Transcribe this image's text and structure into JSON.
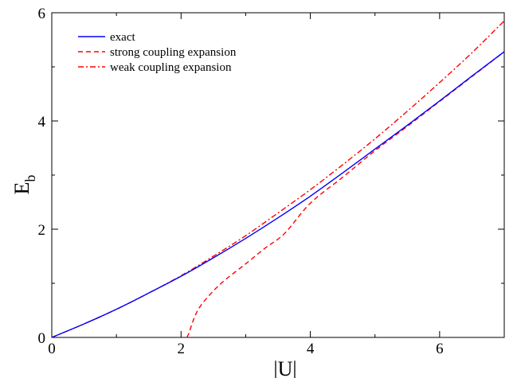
{
  "chart_data": {
    "type": "line",
    "xlabel": "|U|",
    "ylabel": "E",
    "ylabel_subscript": "b",
    "xlim": [
      0,
      7
    ],
    "ylim": [
      0,
      6
    ],
    "xticks": [
      "0",
      "2",
      "4",
      "6"
    ],
    "yticks": [
      "0",
      "2",
      "4",
      "6"
    ],
    "grid": false,
    "legend_position": "top-left",
    "series": [
      {
        "name": "exact",
        "color": "#0000ff",
        "dash": "solid",
        "x": [
          0,
          0.5,
          1,
          1.5,
          2,
          2.5,
          3,
          3.5,
          4,
          4.5,
          5,
          5.5,
          6,
          6.5,
          7
        ],
        "y": [
          0,
          0.25,
          0.52,
          0.82,
          1.13,
          1.47,
          1.83,
          2.21,
          2.61,
          3.04,
          3.48,
          3.92,
          4.37,
          4.83,
          5.28
        ]
      },
      {
        "name": "strong coupling expansion",
        "color": "#ff0000",
        "dash": "dashed",
        "x": [
          2.0,
          2.1,
          2.2,
          2.3,
          2.5,
          2.7,
          3.0,
          3.3,
          3.6,
          4.0,
          4.5,
          5.0,
          5.5,
          6.0,
          6.5,
          7.0
        ],
        "y": [
          -0.1,
          0.02,
          0.35,
          0.58,
          0.86,
          1.08,
          1.36,
          1.65,
          1.92,
          2.48,
          2.96,
          3.45,
          3.9,
          4.36,
          4.82,
          5.28
        ]
      },
      {
        "name": "weak coupling expansion",
        "color": "#ff0000",
        "dash": "dashdot",
        "x": [
          0,
          0.5,
          1,
          1.5,
          2,
          2.5,
          3,
          3.5,
          4,
          4.5,
          5,
          5.5,
          6,
          6.5,
          7
        ],
        "y": [
          0,
          0.25,
          0.52,
          0.82,
          1.14,
          1.5,
          1.88,
          2.3,
          2.73,
          3.19,
          3.67,
          4.18,
          4.71,
          5.26,
          5.85
        ]
      }
    ]
  }
}
